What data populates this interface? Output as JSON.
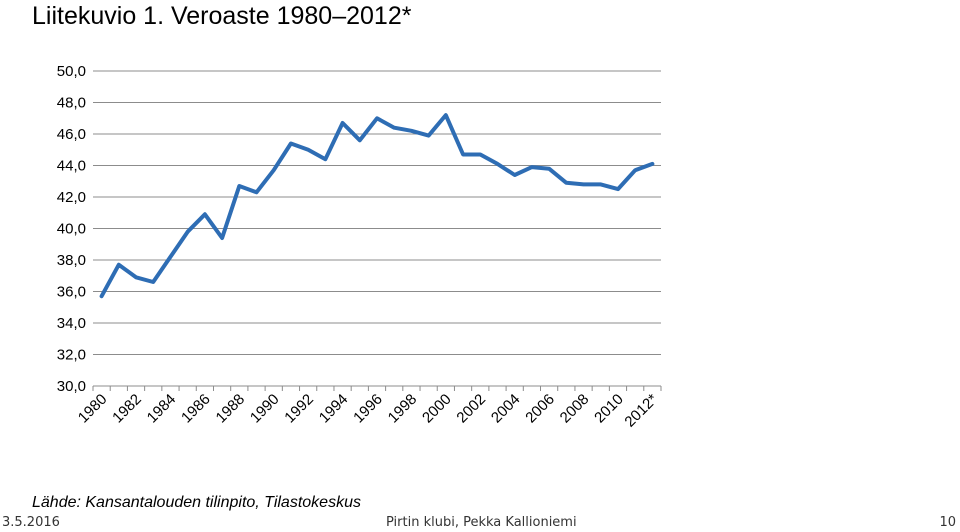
{
  "title": "Liitekuvio 1. Veroaste 1980–2012*",
  "source": "Lähde: Kansantalouden tilinpito, Tilastokeskus",
  "footer": {
    "date": "3.5.2016",
    "center": "Pirtin klubi, Pekka Kallioniemi",
    "page": "10"
  },
  "colors": {
    "line": "#2E6DB4",
    "grid": "#8C8C8C"
  },
  "chart_data": {
    "type": "line",
    "title": "",
    "xlabel": "",
    "ylabel": "",
    "ylim": [
      30,
      50
    ],
    "yticks": [
      "30,0",
      "32,0",
      "34,0",
      "36,0",
      "38,0",
      "40,0",
      "42,0",
      "44,0",
      "46,0",
      "48,0",
      "50,0"
    ],
    "x": [
      "1980",
      "1981",
      "1982",
      "1983",
      "1984",
      "1985",
      "1986",
      "1987",
      "1988",
      "1989",
      "1990",
      "1991",
      "1992",
      "1993",
      "1994",
      "1995",
      "1996",
      "1997",
      "1998",
      "1999",
      "2000",
      "2001",
      "2002",
      "2003",
      "2004",
      "2005",
      "2006",
      "2007",
      "2008",
      "2009",
      "2010",
      "2011",
      "2012*"
    ],
    "xtick_labels": [
      "1980",
      "1982",
      "1984",
      "1986",
      "1988",
      "1990",
      "1992",
      "1994",
      "1996",
      "1998",
      "2000",
      "2002",
      "2004",
      "2006",
      "2008",
      "2010",
      "2012*"
    ],
    "grid": "horizontal",
    "series": [
      {
        "values": [
          35.7,
          37.7,
          36.9,
          36.6,
          38.2,
          39.8,
          40.9,
          39.4,
          42.7,
          42.3,
          43.7,
          45.4,
          45.0,
          44.4,
          46.7,
          45.6,
          47.0,
          46.4,
          46.2,
          45.9,
          47.2,
          44.7,
          44.7,
          44.1,
          43.4,
          43.9,
          43.8,
          42.9,
          42.8,
          42.8,
          42.5,
          43.7,
          44.1
        ]
      }
    ]
  }
}
